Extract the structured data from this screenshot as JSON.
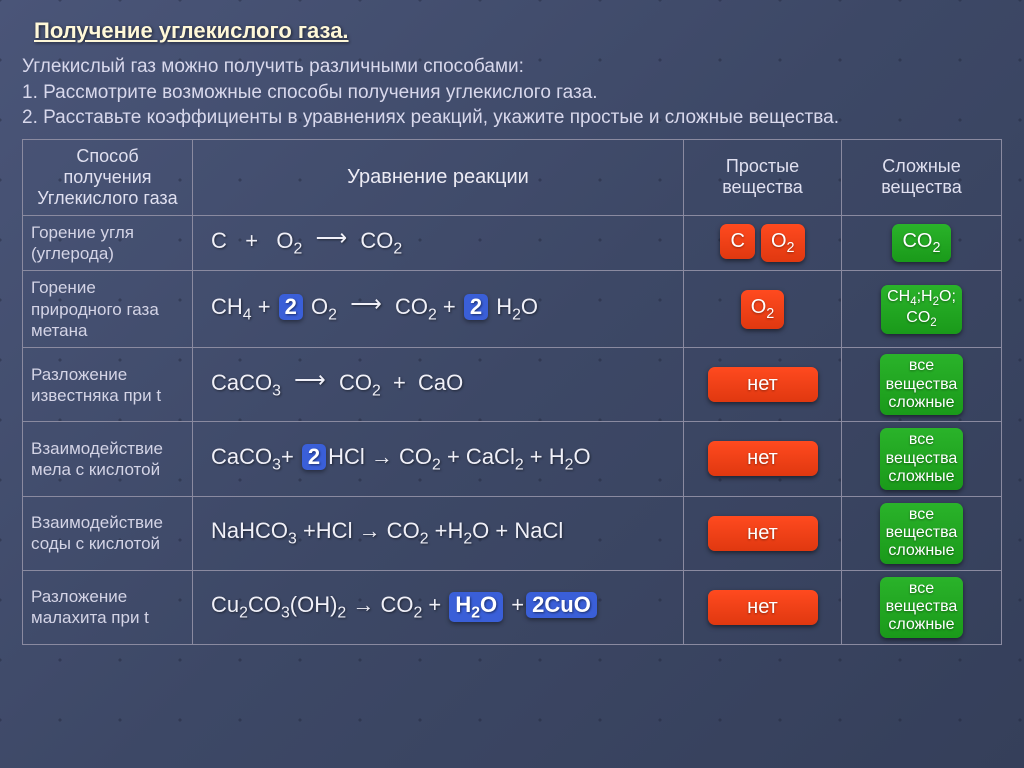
{
  "title": "Получение углекислого газа.",
  "intro_lines": [
    "Углекислый газ можно получить различными способами:",
    "1. Рассмотрите возможные способы получения углекислого газа.",
    "2. Расставьте коэффициенты в уравнениях реакций, укажите простые и сложные вещества."
  ],
  "headers": {
    "method": "Способ получения Углекислого газа",
    "equation": "Уравнение реакции",
    "simple": "Простые вещества",
    "complex": "Сложные вещества"
  },
  "rows": [
    {
      "method": "Горение угля (углерода)",
      "eq_html": "C&nbsp;&nbsp;&nbsp;+&nbsp;&nbsp;&nbsp;O<sub>2</sub><span class='arrow'>⟶</span>CO<sub>2</sub>",
      "simple": [
        {
          "t": "C",
          "c": "red"
        },
        {
          "t": "O<sub>2</sub>",
          "c": "red"
        }
      ],
      "complex": [
        {
          "t": "CO<sub>2</sub>",
          "c": "green"
        }
      ]
    },
    {
      "method": "Горение природного газа метана",
      "eq_html": "CH<sub>4</sub> + <span class='coef'>2</span> O<sub>2</sub><span class='arrow'>⟶</span>CO<sub>2</sub> + <span class='coef'>2</span> H<sub>2</sub>O",
      "simple": [
        {
          "t": "O<sub>2</sub>",
          "c": "red"
        }
      ],
      "complex": [
        {
          "t": "CH<sub>4</sub>;H<sub>2</sub>O;<br>CO<sub>2</sub>",
          "c": "green",
          "cls": "small tall"
        }
      ]
    },
    {
      "method": "Разложение известняка при t",
      "eq_html": "CaCO<sub>3</sub><span class='arrow'>⟶</span>CO<sub>2</sub>&nbsp;&nbsp;+&nbsp;&nbsp;CaO",
      "simple": [
        {
          "t": "нет",
          "c": "red",
          "cls": "wide"
        }
      ],
      "complex": [
        {
          "t": "все<br>вещества<br>сложные",
          "c": "green",
          "cls": "small tall"
        }
      ]
    },
    {
      "method": "Взаимодействие мела с кислотой",
      "eq_html": "CaCO<sub>3</sub>+ <span class='coef'>2</span>HCl → CO<sub>2</sub> + CaCl<sub>2</sub> + H<sub>2</sub>O",
      "simple": [
        {
          "t": "нет",
          "c": "red",
          "cls": "wide"
        }
      ],
      "complex": [
        {
          "t": "все<br>вещества<br>сложные",
          "c": "green",
          "cls": "small tall"
        }
      ]
    },
    {
      "method": "Взаимодействие соды с кислотой",
      "eq_html": "NaHCO<sub>3</sub> +HCl → CO<sub>2</sub> +H<sub>2</sub>O + NaCl",
      "simple": [
        {
          "t": "нет",
          "c": "red",
          "cls": "wide"
        }
      ],
      "complex": [
        {
          "t": "все<br>вещества<br>сложные",
          "c": "green",
          "cls": "small tall"
        }
      ]
    },
    {
      "method": "Разложение малахита при t",
      "eq_html": "Cu<sub>2</sub>CO<sub>3</sub>(OH)<sub>2</sub> → CO<sub>2</sub> + <span class='coef'>H<sub>2</sub>O</span> +<span class='coef'>2CuO</span>",
      "simple": [
        {
          "t": "нет",
          "c": "red",
          "cls": "wide"
        }
      ],
      "complex": [
        {
          "t": "все<br>вещества<br>сложные",
          "c": "green",
          "cls": "small tall"
        }
      ]
    }
  ],
  "colors": {
    "red": "#ff3a12",
    "green": "#1ea81e",
    "coef_bg": "#3a5fd8",
    "bg_start": "#4a5578",
    "bg_end": "#353f5a",
    "title_color": "#fff8d8"
  }
}
